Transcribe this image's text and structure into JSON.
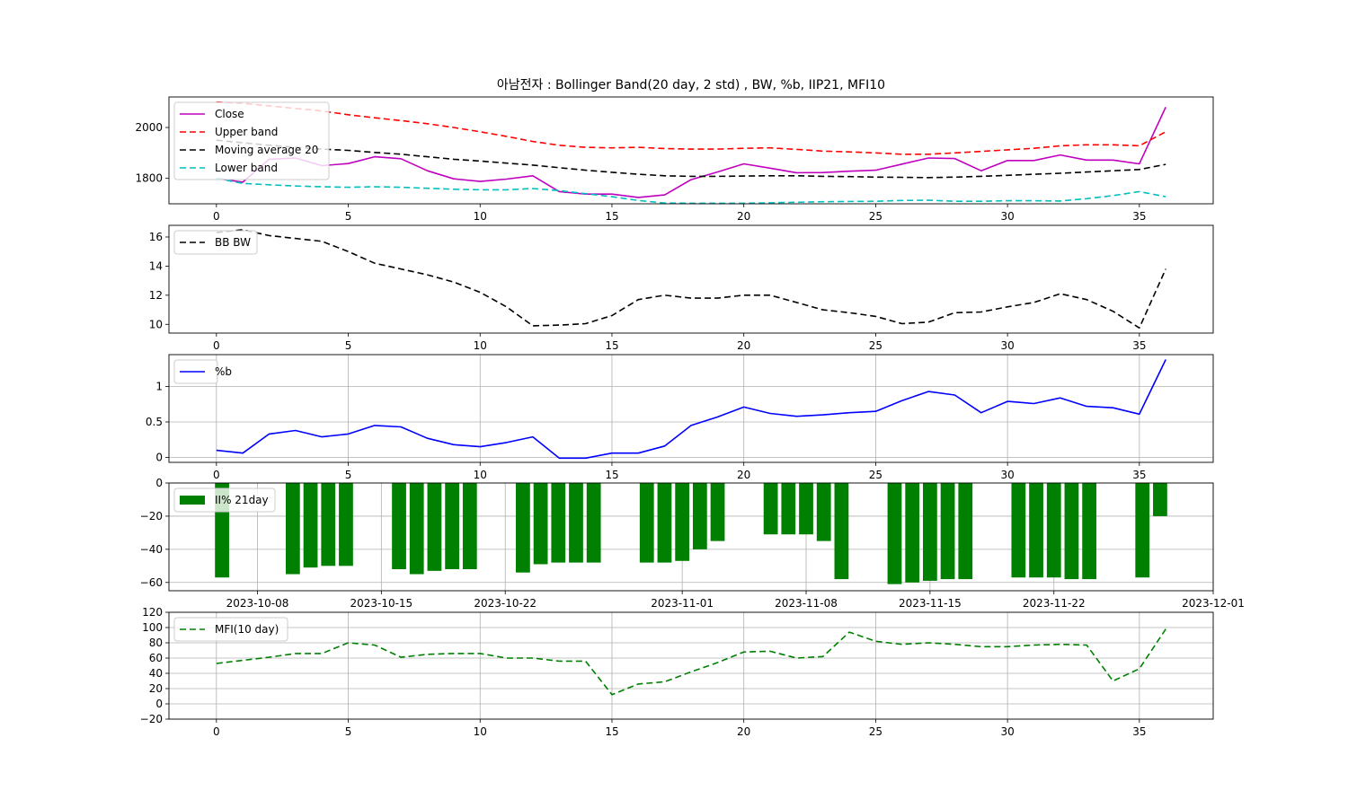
{
  "title": "아남전자 : Bollinger Band(20 day, 2 std) , BW, %b, IIP21, MFI10",
  "chart_data": [
    {
      "type": "line",
      "grid": false,
      "legend": "upper-left",
      "xlim": [
        -1.8,
        37.8
      ],
      "ylim": [
        1700,
        2120
      ],
      "xticks": [
        0,
        5,
        10,
        15,
        20,
        25,
        30,
        35
      ],
      "yticks": [
        1800,
        2000
      ],
      "series": [
        {
          "name": "Close",
          "color": "#bf00bf",
          "dash": "",
          "values": [
            1800,
            1785,
            1875,
            1880,
            1850,
            1858,
            1885,
            1877,
            1830,
            1798,
            1788,
            1797,
            1810,
            1748,
            1738,
            1738,
            1725,
            1735,
            1795,
            1825,
            1857,
            1840,
            1822,
            1823,
            1828,
            1832,
            1856,
            1880,
            1878,
            1830,
            1870,
            1870,
            1892,
            1872,
            1872,
            1857,
            2080
          ]
        },
        {
          "name": "Upper band",
          "color": "#ff0000",
          "dash": "7,4",
          "values": [
            2100,
            2095,
            2085,
            2075,
            2065,
            2050,
            2038,
            2027,
            2015,
            2000,
            1983,
            1965,
            1945,
            1930,
            1922,
            1920,
            1922,
            1917,
            1915,
            1915,
            1918,
            1920,
            1914,
            1907,
            1904,
            1900,
            1895,
            1895,
            1900,
            1906,
            1912,
            1918,
            1928,
            1932,
            1932,
            1928,
            1983
          ]
        },
        {
          "name": "Moving average 20",
          "color": "#000000",
          "dash": "7,4",
          "values": [
            1950,
            1940,
            1930,
            1922,
            1915,
            1910,
            1902,
            1895,
            1885,
            1875,
            1868,
            1860,
            1852,
            1842,
            1832,
            1824,
            1816,
            1810,
            1808,
            1808,
            1809,
            1810,
            1810,
            1808,
            1807,
            1805,
            1804,
            1803,
            1805,
            1808,
            1812,
            1816,
            1820,
            1825,
            1830,
            1835,
            1855
          ]
        },
        {
          "name": "Lower band",
          "color": "#00bfbf",
          "dash": "7,4",
          "values": [
            1800,
            1780,
            1775,
            1770,
            1767,
            1765,
            1767,
            1765,
            1761,
            1757,
            1755,
            1755,
            1760,
            1752,
            1740,
            1728,
            1713,
            1703,
            1702,
            1702,
            1702,
            1704,
            1706,
            1708,
            1709,
            1710,
            1713,
            1714,
            1710,
            1710,
            1712,
            1712,
            1711,
            1720,
            1732,
            1748,
            1728
          ]
        }
      ]
    },
    {
      "type": "line",
      "grid": false,
      "legend": "upper-left",
      "xlim": [
        -1.8,
        37.8
      ],
      "ylim": [
        9.4,
        16.8
      ],
      "xticks": [
        0,
        5,
        10,
        15,
        20,
        25,
        30,
        35
      ],
      "yticks": [
        10,
        12,
        14,
        16
      ],
      "series": [
        {
          "name": "BB BW",
          "color": "#000000",
          "dash": "7,4",
          "values": [
            16.3,
            16.5,
            16.1,
            15.9,
            15.7,
            15.0,
            14.2,
            13.8,
            13.4,
            12.9,
            12.2,
            11.2,
            9.9,
            9.95,
            10.05,
            10.6,
            11.7,
            12.0,
            11.8,
            11.8,
            12.0,
            12.0,
            11.5,
            11.0,
            10.8,
            10.55,
            10.05,
            10.15,
            10.8,
            10.85,
            11.2,
            11.5,
            12.1,
            11.7,
            10.9,
            9.75,
            13.8
          ]
        }
      ]
    },
    {
      "type": "line",
      "grid": true,
      "legend": "upper-left",
      "xlim": [
        -1.8,
        37.8
      ],
      "ylim": [
        -0.07,
        1.45
      ],
      "xticks": [
        0,
        5,
        10,
        15,
        20,
        25,
        30,
        35
      ],
      "yticks": [
        0.0,
        0.5,
        1.0
      ],
      "series": [
        {
          "name": "%b",
          "color": "#0000ff",
          "dash": "",
          "values": [
            0.1,
            0.06,
            0.33,
            0.38,
            0.29,
            0.33,
            0.45,
            0.43,
            0.27,
            0.18,
            0.15,
            0.21,
            0.29,
            -0.01,
            -0.01,
            0.06,
            0.06,
            0.16,
            0.45,
            0.57,
            0.71,
            0.62,
            0.58,
            0.6,
            0.63,
            0.65,
            0.8,
            0.93,
            0.88,
            0.63,
            0.79,
            0.76,
            0.84,
            0.72,
            0.7,
            0.61,
            1.38
          ]
        }
      ]
    },
    {
      "type": "bar",
      "grid": true,
      "legend": "upper-left",
      "xlim": [
        "2023-10-03",
        "2023-12-01"
      ],
      "ylim": [
        -65,
        0
      ],
      "xticks": [
        "2023-10-08",
        "2023-10-15",
        "2023-10-22",
        "2023-11-01",
        "2023-11-08",
        "2023-11-15",
        "2023-11-22",
        "2023-12-01"
      ],
      "yticks": [
        -60,
        -40,
        -20,
        0
      ],
      "ytick_labels": [
        "−60",
        "−40",
        "−20",
        "0"
      ],
      "series": [
        {
          "name": "II% 21day",
          "color": "#008000",
          "dates": [
            "2023-10-06",
            "2023-10-10",
            "2023-10-11",
            "2023-10-12",
            "2023-10-13",
            "2023-10-16",
            "2023-10-17",
            "2023-10-18",
            "2023-10-19",
            "2023-10-20",
            "2023-10-23",
            "2023-10-24",
            "2023-10-25",
            "2023-10-26",
            "2023-10-27",
            "2023-10-30",
            "2023-10-31",
            "2023-11-01",
            "2023-11-02",
            "2023-11-03",
            "2023-11-06",
            "2023-11-07",
            "2023-11-08",
            "2023-11-09",
            "2023-11-10",
            "2023-11-13",
            "2023-11-14",
            "2023-11-15",
            "2023-11-16",
            "2023-11-17",
            "2023-11-20",
            "2023-11-21",
            "2023-11-22",
            "2023-11-23",
            "2023-11-24",
            "2023-11-27",
            "2023-11-28"
          ],
          "values": [
            -57,
            -55,
            -51,
            -50,
            -50,
            -52,
            -55,
            -53,
            -52,
            -52,
            -54,
            -49,
            -48,
            -48,
            -48,
            -48,
            -48,
            -47,
            -40,
            -35,
            -31,
            -31,
            -31,
            -35,
            -58,
            -61,
            -60,
            -59,
            -58,
            -58,
            -57,
            -57,
            -57,
            -58,
            -58,
            -57,
            -20
          ]
        }
      ]
    },
    {
      "type": "line",
      "grid": true,
      "legend": "upper-left",
      "xlim": [
        -1.8,
        37.8
      ],
      "ylim": [
        -20,
        120
      ],
      "xticks": [
        0,
        5,
        10,
        15,
        20,
        25,
        30,
        35
      ],
      "yticks": [
        -20,
        0,
        20,
        40,
        60,
        80,
        100,
        120
      ],
      "ytick_labels": [
        "−20",
        "0",
        "20",
        "40",
        "60",
        "80",
        "100",
        "120"
      ],
      "series": [
        {
          "name": "MFI(10 day)",
          "color": "#008000",
          "dash": "7,4",
          "values": [
            53,
            57,
            61,
            66,
            66,
            80,
            77,
            61,
            65,
            66,
            66,
            60,
            60,
            56,
            56,
            12,
            26,
            29,
            42,
            54,
            68,
            69,
            60,
            62,
            94,
            82,
            78,
            80,
            78,
            75,
            75,
            77,
            78,
            77,
            30,
            46,
            98
          ]
        }
      ]
    }
  ]
}
